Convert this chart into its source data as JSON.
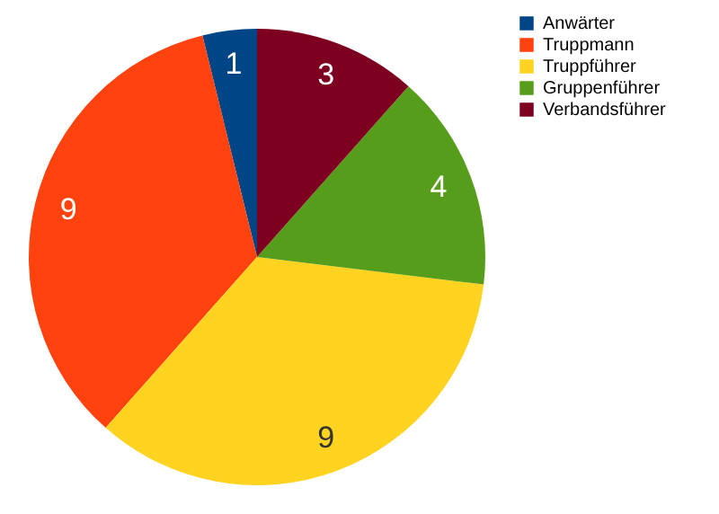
{
  "chart_data": {
    "type": "pie",
    "categories": [
      "Anwärter",
      "Truppmann",
      "Truppführer",
      "Gruppenführer",
      "Verbandsführer"
    ],
    "values": [
      1,
      9,
      9,
      4,
      3
    ],
    "colors": [
      "#004586",
      "#ff420e",
      "#ffd320",
      "#579d1c",
      "#7e0021"
    ],
    "data_labels": true,
    "legend": "right"
  }
}
